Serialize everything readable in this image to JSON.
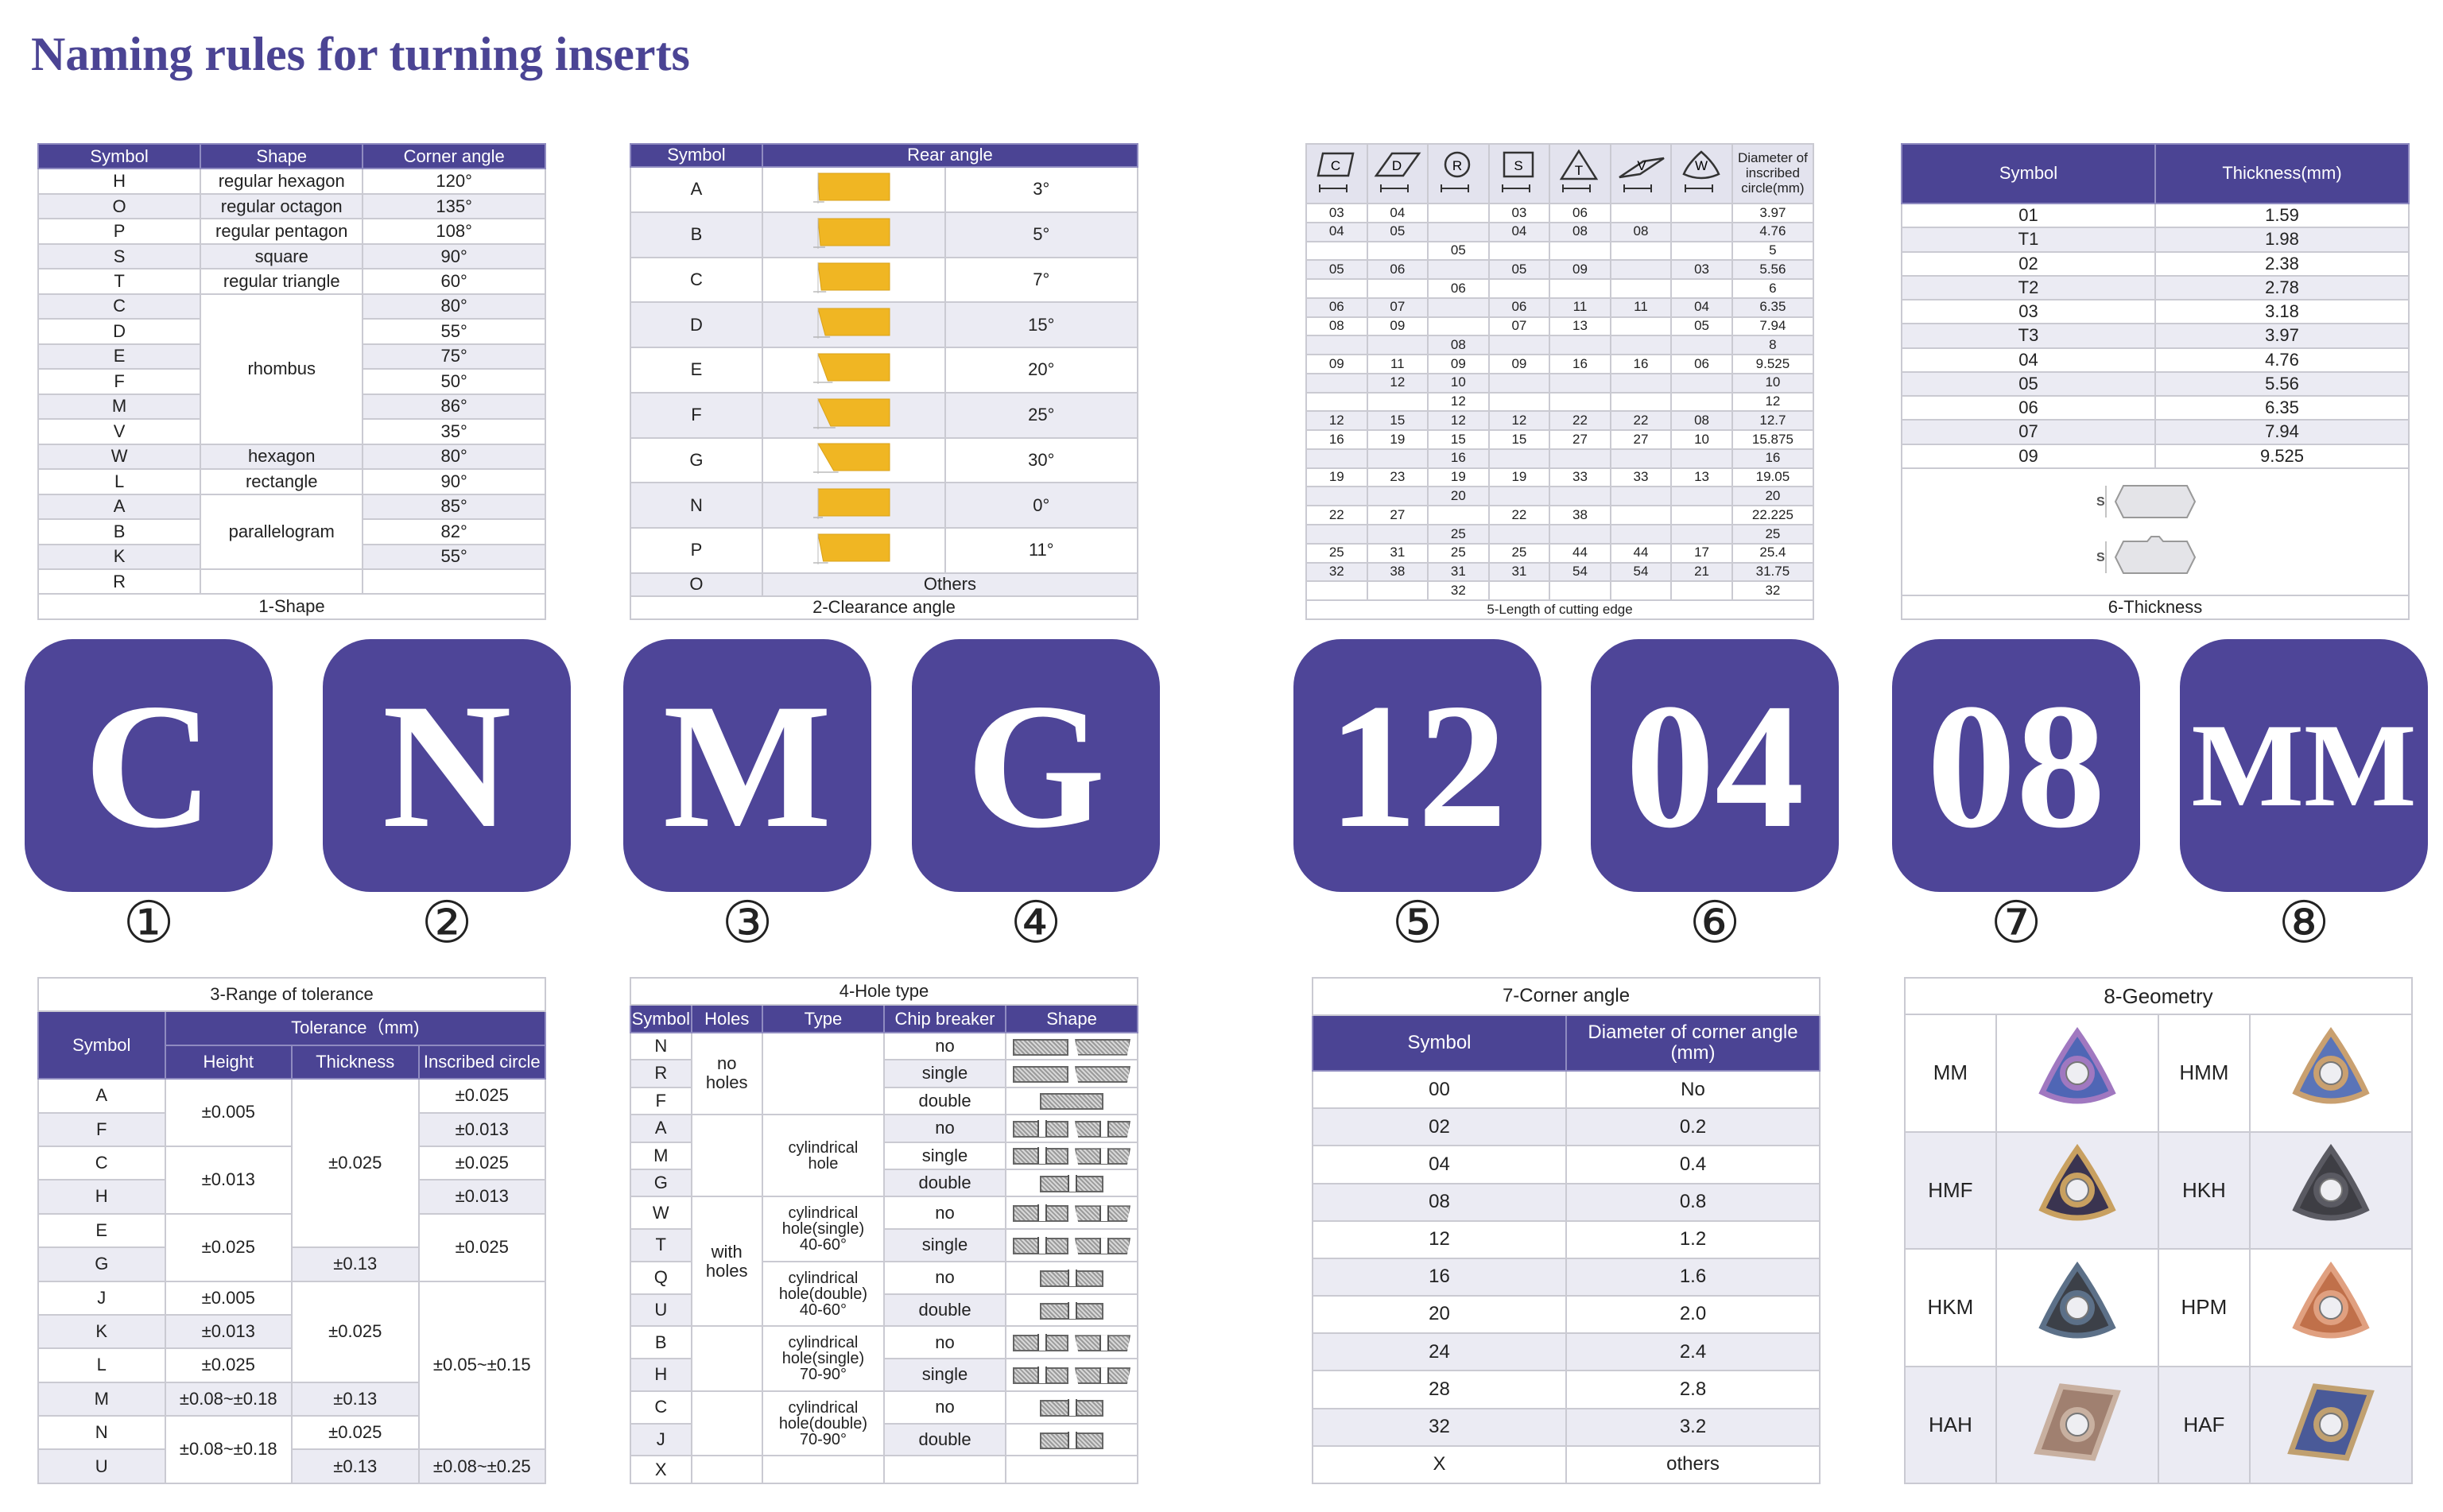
{
  "title": "Naming rules for turning inserts",
  "colors": {
    "primary": "#4b4494",
    "tile": "#4e4598",
    "insert_yellow": "#f0b623",
    "row_shade": "#ebebf3"
  },
  "code": [
    {
      "char": "C",
      "marker": "①"
    },
    {
      "char": "N",
      "marker": "②"
    },
    {
      "char": "M",
      "marker": "③"
    },
    {
      "char": "G",
      "marker": "④"
    },
    {
      "char": "12",
      "marker": "⑤"
    },
    {
      "char": "04",
      "marker": "⑥"
    },
    {
      "char": "08",
      "marker": "⑦"
    },
    {
      "char": "MM",
      "marker": "⑧"
    }
  ],
  "shape_table": {
    "caption": "1-Shape",
    "headers": [
      "Symbol",
      "Shape",
      "Corner angle"
    ],
    "rows": [
      [
        "H",
        "regular hexagon",
        "120°"
      ],
      [
        "O",
        "regular octagon",
        "135°"
      ],
      [
        "P",
        "regular pentagon",
        "108°"
      ],
      [
        "S",
        "square",
        "90°"
      ],
      [
        "T",
        "regular triangle",
        "60°"
      ],
      [
        "C",
        "rhombus",
        "80°"
      ],
      [
        "D",
        "",
        "55°"
      ],
      [
        "E",
        "",
        "75°"
      ],
      [
        "F",
        "",
        "50°"
      ],
      [
        "M",
        "",
        "86°"
      ],
      [
        "V",
        "",
        "35°"
      ],
      [
        "W",
        "hexagon",
        "80°"
      ],
      [
        "L",
        "rectangle",
        "90°"
      ],
      [
        "A",
        "parallelogram",
        "85°"
      ],
      [
        "B",
        "",
        "82°"
      ],
      [
        "K",
        "",
        "55°"
      ],
      [
        "R",
        "",
        ""
      ]
    ]
  },
  "clearance_table": {
    "caption": "2-Clearance angle",
    "headers": [
      "Symbol",
      "Rear angle"
    ],
    "rows": [
      [
        "A",
        "3°"
      ],
      [
        "B",
        "5°"
      ],
      [
        "C",
        "7°"
      ],
      [
        "D",
        "15°"
      ],
      [
        "E",
        "20°"
      ],
      [
        "F",
        "25°"
      ],
      [
        "G",
        "30°"
      ],
      [
        "N",
        "0°"
      ],
      [
        "P",
        "11°"
      ],
      [
        "O",
        "Others"
      ]
    ]
  },
  "tolerance_table": {
    "caption": "3-Range of tolerance",
    "headers": [
      "Symbol",
      "Tolerance（mm)",
      "Height",
      "Thickness",
      "Inscribed circle"
    ],
    "rows": [
      [
        "A",
        "±0.005",
        "±0.025",
        "±0.025"
      ],
      [
        "F",
        "",
        "",
        "±0.013"
      ],
      [
        "C",
        "±0.013",
        "",
        "±0.025"
      ],
      [
        "H",
        "",
        "",
        "±0.013"
      ],
      [
        "E",
        "±0.025",
        "",
        "±0.025"
      ],
      [
        "G",
        "",
        "±0.13",
        ""
      ],
      [
        "J",
        "±0.005",
        "±0.025",
        "±0.05~±0.15"
      ],
      [
        "K",
        "±0.013",
        "",
        ""
      ],
      [
        "L",
        "±0.025",
        "",
        ""
      ],
      [
        "M",
        "±0.08~±0.18",
        "±0.13",
        ""
      ],
      [
        "N",
        "±0.08~±0.18",
        "±0.025",
        ""
      ],
      [
        "U",
        "",
        "±0.13",
        "±0.08~±0.25"
      ]
    ]
  },
  "hole_table": {
    "caption": "4-Hole type",
    "headers": [
      "Symbol",
      "Holes",
      "Type",
      "Chip breaker",
      "Shape"
    ],
    "rows": [
      [
        "N",
        "no\nholes",
        "",
        "no"
      ],
      [
        "R",
        "",
        "",
        "single"
      ],
      [
        "F",
        "",
        "",
        "double"
      ],
      [
        "A",
        "",
        "cylindrical\nhole",
        "no"
      ],
      [
        "M",
        "",
        "",
        "single"
      ],
      [
        "G",
        "",
        "",
        "double"
      ],
      [
        "W",
        "with\nholes",
        "cylindrical\nhole(single)\n40-60°",
        "no"
      ],
      [
        "T",
        "",
        "",
        "single"
      ],
      [
        "Q",
        "",
        "cylindrical\nhole(double)\n40-60°",
        "no"
      ],
      [
        "U",
        "",
        "",
        "double"
      ],
      [
        "B",
        "",
        "cylindrical\nhole(single)\n70-90°",
        "no"
      ],
      [
        "H",
        "",
        "",
        "single"
      ],
      [
        "C",
        "",
        "cylindrical\nhole(double)\n70-90°",
        "no"
      ],
      [
        "J",
        "",
        "",
        "double"
      ],
      [
        "X",
        "",
        "",
        ""
      ]
    ],
    "shapes": [
      "pair",
      "pair",
      "single",
      "pair-hole",
      "pair-hole",
      "single-hole",
      "pair-hole",
      "pair-hole",
      "single-hole",
      "single-hole",
      "pair-hole",
      "pair-hole",
      "single-hole",
      "single-hole",
      "none"
    ]
  },
  "edge_table": {
    "caption": "5-Length of cutting edge",
    "shape_letters": [
      "C",
      "D",
      "R",
      "S",
      "T",
      "V",
      "W"
    ],
    "diameter_header": "Diameter of inscribed circle(mm)",
    "rows": [
      [
        "03",
        "04",
        "",
        "03",
        "06",
        "",
        "",
        "3.97"
      ],
      [
        "04",
        "05",
        "",
        "04",
        "08",
        "08",
        "",
        "4.76"
      ],
      [
        "",
        "",
        "05",
        "",
        "",
        "",
        "",
        "5"
      ],
      [
        "05",
        "06",
        "",
        "05",
        "09",
        "",
        "03",
        "5.56"
      ],
      [
        "",
        "",
        "06",
        "",
        "",
        "",
        "",
        "6"
      ],
      [
        "06",
        "07",
        "",
        "06",
        "11",
        "11",
        "04",
        "6.35"
      ],
      [
        "08",
        "09",
        "",
        "07",
        "13",
        "",
        "05",
        "7.94"
      ],
      [
        "",
        "",
        "08",
        "",
        "",
        "",
        "",
        "8"
      ],
      [
        "09",
        "11",
        "09",
        "09",
        "16",
        "16",
        "06",
        "9.525"
      ],
      [
        "",
        "12",
        "10",
        "",
        "",
        "",
        "",
        "10"
      ],
      [
        "",
        "",
        "12",
        "",
        "",
        "",
        "",
        "12"
      ],
      [
        "12",
        "15",
        "12",
        "12",
        "22",
        "22",
        "08",
        "12.7"
      ],
      [
        "16",
        "19",
        "15",
        "15",
        "27",
        "27",
        "10",
        "15.875"
      ],
      [
        "",
        "",
        "16",
        "",
        "",
        "",
        "",
        "16"
      ],
      [
        "19",
        "23",
        "19",
        "19",
        "33",
        "33",
        "13",
        "19.05"
      ],
      [
        "",
        "",
        "20",
        "",
        "",
        "",
        "",
        "20"
      ],
      [
        "22",
        "27",
        "",
        "22",
        "38",
        "",
        "",
        "22.225"
      ],
      [
        "",
        "",
        "25",
        "",
        "",
        "",
        "",
        "25"
      ],
      [
        "25",
        "31",
        "25",
        "25",
        "44",
        "44",
        "17",
        "25.4"
      ],
      [
        "32",
        "38",
        "31",
        "31",
        "54",
        "54",
        "21",
        "31.75"
      ],
      [
        "",
        "",
        "32",
        "",
        "",
        "",
        "",
        "32"
      ]
    ]
  },
  "thickness_table": {
    "caption": "6-Thickness",
    "headers": [
      "Symbol",
      "Thickness(mm)"
    ],
    "dimension_label": "S",
    "rows": [
      [
        "01",
        "1.59"
      ],
      [
        "T1",
        "1.98"
      ],
      [
        "02",
        "2.38"
      ],
      [
        "T2",
        "2.78"
      ],
      [
        "03",
        "3.18"
      ],
      [
        "T3",
        "3.97"
      ],
      [
        "04",
        "4.76"
      ],
      [
        "05",
        "5.56"
      ],
      [
        "06",
        "6.35"
      ],
      [
        "07",
        "7.94"
      ],
      [
        "09",
        "9.525"
      ]
    ]
  },
  "corner_table": {
    "caption": "7-Corner angle",
    "headers": [
      "Symbol",
      "Diameter of corner angle\n(mm)"
    ],
    "rows": [
      [
        "00",
        "No"
      ],
      [
        "02",
        "0.2"
      ],
      [
        "04",
        "0.4"
      ],
      [
        "08",
        "0.8"
      ],
      [
        "12",
        "1.2"
      ],
      [
        "16",
        "1.6"
      ],
      [
        "20",
        "2.0"
      ],
      [
        "24",
        "2.4"
      ],
      [
        "28",
        "2.8"
      ],
      [
        "32",
        "3.2"
      ],
      [
        "X",
        "others"
      ]
    ]
  },
  "geometry_table": {
    "caption": "8-Geometry",
    "items": [
      {
        "label": "MM",
        "shape": "trigon",
        "color": "#4f66b5",
        "edge": "#a078c0"
      },
      {
        "label": "HMM",
        "shape": "trigon",
        "color": "#5a74b8",
        "edge": "#c9a070"
      },
      {
        "label": "HMF",
        "shape": "trigon",
        "color": "#3a3450",
        "edge": "#c8a060"
      },
      {
        "label": "HKH",
        "shape": "trigon",
        "color": "#3e3e44",
        "edge": "#5a5a62"
      },
      {
        "label": "HKM",
        "shape": "trigon",
        "color": "#3c4048",
        "edge": "#5c7088"
      },
      {
        "label": "HPM",
        "shape": "trigon",
        "color": "#c0704a",
        "edge": "#e0a080"
      },
      {
        "label": "HAH",
        "shape": "rhombus",
        "color": "#a08070",
        "edge": "#c8b0a0"
      },
      {
        "label": "HAF",
        "shape": "rhombus",
        "color": "#4a5a98",
        "edge": "#c0a070"
      }
    ]
  }
}
